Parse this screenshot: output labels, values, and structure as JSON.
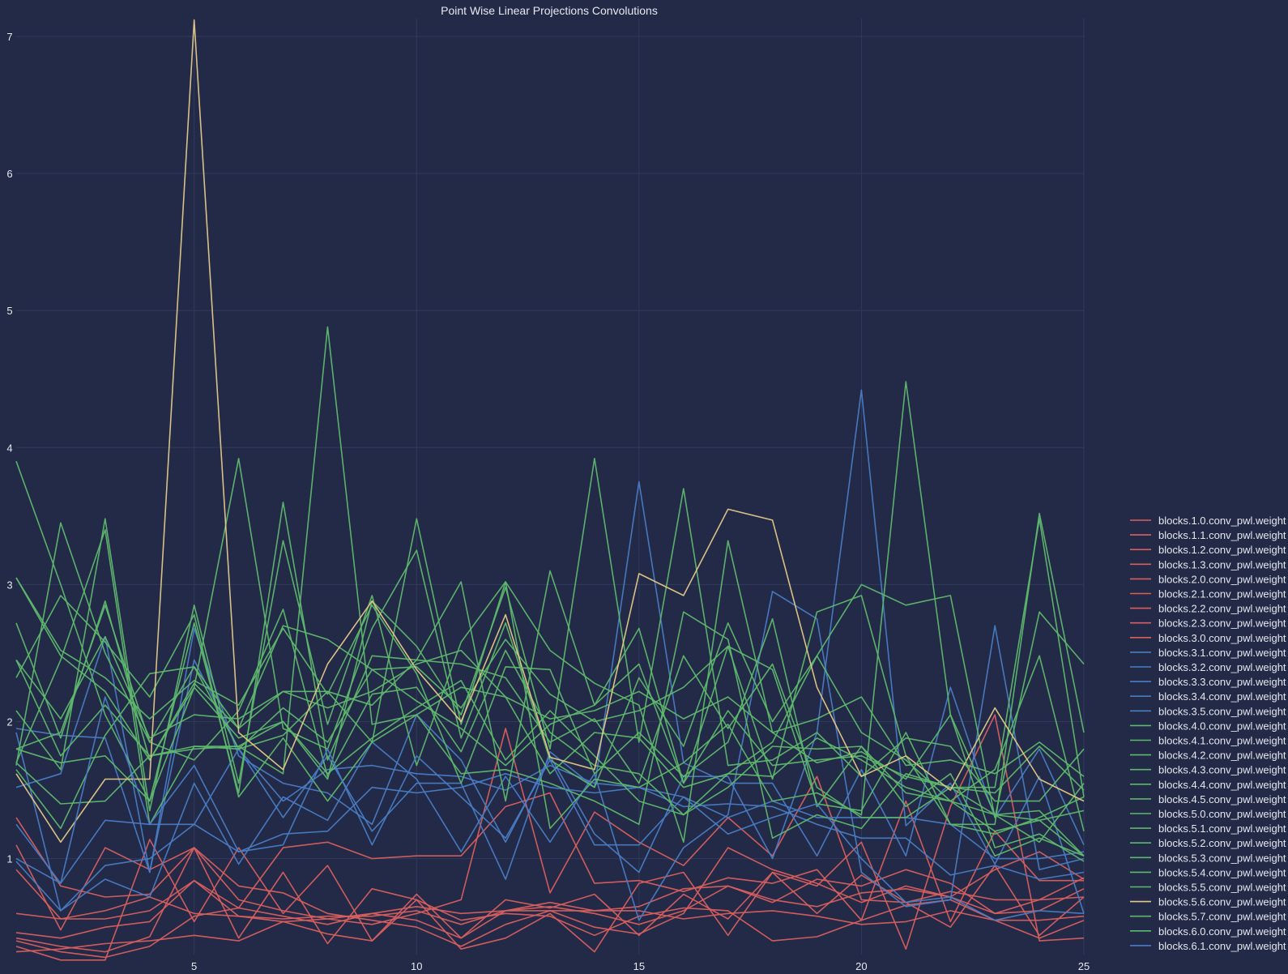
{
  "chart_data": {
    "type": "line",
    "title": "Point Wise Linear Projections Convolutions",
    "xlabel": "",
    "ylabel": "",
    "x": [
      1,
      2,
      3,
      4,
      5,
      6,
      7,
      8,
      9,
      10,
      11,
      12,
      13,
      14,
      15,
      16,
      17,
      18,
      19,
      20,
      21,
      22,
      23,
      24,
      25
    ],
    "xlim": [
      1,
      25
    ],
    "ylim": [
      0.3,
      7.13
    ],
    "x_ticks": [
      5,
      10,
      15,
      20,
      25
    ],
    "y_ticks": [
      1,
      2,
      3,
      4,
      5,
      6,
      7
    ],
    "grid": true,
    "legend_position": "right",
    "colors": {
      "background": "#222a47",
      "grid": "#303a5c",
      "text": "#e6e8ee",
      "red": "#d95f5f",
      "blue": "#4a7cc4",
      "green": "#5fb86e",
      "yellow": "#e4c888"
    },
    "series": [
      {
        "name": "blocks.1.0.conv_pwl.weight",
        "color": "#d95f5f",
        "values": [
          0.42,
          0.36,
          0.32,
          0.43,
          1.08,
          0.8,
          0.75,
          0.6,
          0.55,
          0.5,
          0.36,
          0.52,
          0.62,
          0.5,
          0.45,
          0.6,
          1.08,
          0.92,
          0.82,
          0.68,
          0.8,
          0.72,
          0.92,
          1.05,
          0.85
        ]
      },
      {
        "name": "blocks.1.1.conv_pwl.weight",
        "color": "#d95f5f",
        "values": [
          0.32,
          0.34,
          0.38,
          0.4,
          0.44,
          0.4,
          0.54,
          0.45,
          0.4,
          0.7,
          0.55,
          0.6,
          0.58,
          0.44,
          0.58,
          0.64,
          0.62,
          0.4,
          0.43,
          0.55,
          0.66,
          0.7,
          0.55,
          0.42,
          0.55
        ]
      },
      {
        "name": "blocks.1.2.conv_pwl.weight",
        "color": "#d95f5f",
        "values": [
          0.6,
          0.56,
          0.62,
          0.72,
          0.6,
          0.58,
          0.54,
          0.56,
          0.6,
          0.65,
          0.6,
          0.62,
          0.62,
          0.62,
          0.65,
          0.78,
          0.8,
          0.68,
          0.85,
          0.8,
          0.92,
          0.82,
          0.6,
          0.7,
          0.86
        ]
      },
      {
        "name": "blocks.1.3.conv_pwl.weight",
        "color": "#d95f5f",
        "values": [
          0.46,
          0.42,
          0.5,
          0.54,
          0.84,
          0.64,
          0.58,
          0.52,
          0.6,
          0.55,
          0.42,
          0.62,
          0.65,
          0.6,
          0.52,
          0.62,
          0.8,
          0.7,
          0.65,
          0.75,
          0.78,
          0.72,
          0.6,
          0.62,
          0.78
        ]
      },
      {
        "name": "blocks.2.0.conv_pwl.weight",
        "color": "#d95f5f",
        "values": [
          1.1,
          0.48,
          1.08,
          0.92,
          1.08,
          0.42,
          0.9,
          0.38,
          0.78,
          0.7,
          0.34,
          0.42,
          0.6,
          0.32,
          0.82,
          0.9,
          0.44,
          0.9,
          0.6,
          0.88,
          0.68,
          0.5,
          0.95,
          0.44,
          0.72
        ]
      },
      {
        "name": "blocks.2.1.conv_pwl.weight",
        "color": "#d95f5f",
        "values": [
          0.92,
          0.56,
          0.56,
          0.62,
          0.84,
          0.58,
          0.56,
          0.58,
          0.58,
          0.62,
          0.52,
          0.62,
          0.68,
          0.62,
          0.62,
          0.56,
          0.6,
          0.62,
          0.58,
          0.52,
          0.54,
          0.62,
          0.55,
          0.55,
          0.58
        ]
      },
      {
        "name": "blocks.2.2.conv_pwl.weight",
        "color": "#d95f5f",
        "values": [
          1.3,
          0.8,
          0.72,
          0.74,
          1.08,
          0.7,
          0.62,
          0.56,
          0.52,
          0.6,
          0.7,
          1.95,
          0.75,
          1.34,
          1.12,
          0.95,
          1.3,
          1.02,
          1.6,
          0.7,
          0.68,
          0.76,
          0.7,
          0.7,
          0.72
        ]
      },
      {
        "name": "blocks.2.3.conv_pwl.weight",
        "color": "#d95f5f",
        "values": [
          0.4,
          0.32,
          0.28,
          0.36,
          0.58,
          0.64,
          1.08,
          1.12,
          1.0,
          1.02,
          1.02,
          1.38,
          1.48,
          0.82,
          0.84,
          0.76,
          0.86,
          0.82,
          0.92,
          0.55,
          1.42,
          0.54,
          1.2,
          0.84,
          0.84
        ]
      },
      {
        "name": "blocks.3.0.conv_pwl.weight",
        "color": "#d95f5f",
        "values": [
          0.36,
          0.26,
          0.26,
          1.14,
          0.54,
          1.08,
          0.6,
          0.95,
          0.4,
          0.74,
          0.42,
          0.7,
          0.64,
          0.74,
          0.44,
          0.74,
          0.56,
          0.9,
          0.8,
          1.12,
          0.34,
          1.38,
          2.05,
          0.4,
          0.42
        ]
      },
      {
        "name": "blocks.3.1.conv_pwl.weight",
        "color": "#4a7cc4",
        "values": [
          0.98,
          0.62,
          0.95,
          1.0,
          1.25,
          1.8,
          1.42,
          1.65,
          1.68,
          1.62,
          1.6,
          1.5,
          1.68,
          1.55,
          1.52,
          1.45,
          1.3,
          1.42,
          1.3,
          1.3,
          1.3,
          1.25,
          1.0,
          1.0,
          1.05
        ]
      },
      {
        "name": "blocks.3.2.conv_pwl.weight",
        "color": "#4a7cc4",
        "values": [
          1.0,
          0.82,
          1.28,
          1.25,
          1.25,
          1.05,
          1.18,
          1.2,
          1.52,
          1.48,
          1.52,
          1.62,
          1.52,
          1.48,
          1.52,
          1.38,
          1.4,
          1.38,
          1.25,
          1.15,
          1.15,
          0.88,
          0.95,
          0.85,
          0.9
        ]
      },
      {
        "name": "blocks.3.3.conv_pwl.weight",
        "color": "#4a7cc4",
        "values": [
          1.95,
          1.9,
          1.88,
          0.9,
          2.45,
          1.8,
          1.3,
          1.75,
          1.2,
          1.55,
          1.55,
          0.85,
          1.78,
          1.52,
          3.75,
          1.7,
          1.55,
          1.55,
          1.02,
          1.65,
          1.02,
          2.25,
          1.3,
          1.8,
          1.1
        ]
      },
      {
        "name": "blocks.3.4.conv_pwl.weight",
        "color": "#4a7cc4",
        "values": [
          1.52,
          1.62,
          2.62,
          0.9,
          2.68,
          1.75,
          1.55,
          1.48,
          1.25,
          2.05,
          1.72,
          1.12,
          1.75,
          1.18,
          0.9,
          1.6,
          1.6,
          1.0,
          1.92,
          4.42,
          1.24,
          1.55,
          0.96,
          1.6,
          0.6
        ]
      },
      {
        "name": "blocks.3.5.conv_pwl.weight",
        "color": "#4a7cc4",
        "values": [
          1.92,
          0.62,
          0.85,
          0.72,
          1.55,
          0.96,
          1.45,
          1.28,
          1.85,
          1.58,
          1.05,
          1.6,
          1.12,
          1.62,
          0.55,
          1.08,
          1.32,
          2.95,
          2.75,
          0.9,
          0.65,
          0.7,
          2.7,
          0.92,
          1.0
        ]
      },
      {
        "name": "blocks.4.0.conv_pwl.weight",
        "color": "#5fb86e",
        "values": [
          1.8,
          1.92,
          2.85,
          1.85,
          2.4,
          1.8,
          1.9,
          2.22,
          1.85,
          2.05,
          2.25,
          2.18,
          1.62,
          1.92,
          1.88,
          1.52,
          1.62,
          1.6,
          1.88,
          1.72,
          1.52,
          1.42,
          1.2,
          1.28,
          1.35
        ]
      },
      {
        "name": "blocks.4.1.conv_pwl.weight",
        "color": "#5fb86e",
        "values": [
          2.45,
          1.75,
          2.12,
          1.75,
          1.82,
          1.8,
          2.1,
          1.85,
          2.38,
          2.4,
          2.1,
          2.6,
          2.2,
          2.0,
          2.08,
          2.25,
          2.55,
          2.38,
          1.4,
          1.35,
          1.92,
          1.25,
          1.18,
          1.3,
          1.45
        ]
      },
      {
        "name": "blocks.4.2.conv_pwl.weight",
        "color": "#5fb86e",
        "values": [
          3.05,
          2.48,
          2.22,
          1.72,
          2.28,
          1.95,
          2.7,
          2.6,
          2.38,
          2.15,
          1.95,
          1.68,
          1.98,
          2.12,
          2.42,
          1.55,
          2.08,
          1.68,
          1.72,
          1.75,
          1.6,
          1.52,
          1.32,
          1.35,
          1.02
        ]
      },
      {
        "name": "blocks.4.3.conv_pwl.weight",
        "color": "#5fb86e",
        "values": [
          1.7,
          1.4,
          1.42,
          1.75,
          1.8,
          1.82,
          2.0,
          1.62,
          1.88,
          2.1,
          2.3,
          1.72,
          2.08,
          1.75,
          1.42,
          1.32,
          1.52,
          1.82,
          1.8,
          1.82,
          1.48,
          1.42,
          1.32,
          1.12,
          1.55
        ]
      },
      {
        "name": "blocks.4.4.conv_pwl.weight",
        "color": "#5fb86e",
        "values": [
          3.9,
          3.0,
          2.05,
          1.42,
          2.72,
          1.48,
          3.6,
          1.72,
          2.48,
          2.45,
          3.02,
          1.42,
          3.1,
          2.12,
          2.68,
          1.55,
          2.55,
          1.58,
          2.8,
          2.92,
          1.75,
          1.25,
          1.25,
          3.52,
          1.92
        ]
      },
      {
        "name": "blocks.4.5.conv_pwl.weight",
        "color": "#5fb86e",
        "values": [
          1.68,
          3.45,
          2.5,
          1.85,
          1.72,
          2.08,
          2.82,
          1.6,
          2.2,
          2.25,
          1.78,
          2.52,
          1.92,
          1.68,
          1.62,
          1.32,
          1.62,
          1.85,
          2.48,
          1.92,
          1.72,
          1.42,
          1.65,
          2.48,
          1.2
        ]
      },
      {
        "name": "blocks.5.0.conv_pwl.weight",
        "color": "#5fb86e",
        "values": [
          2.08,
          1.65,
          3.48,
          1.35,
          2.85,
          1.55,
          3.32,
          1.98,
          2.92,
          1.68,
          2.58,
          3.02,
          2.52,
          2.28,
          2.12,
          1.12,
          3.32,
          1.92,
          2.02,
          2.18,
          1.68,
          1.72,
          1.62,
          1.85,
          1.6
        ]
      },
      {
        "name": "blocks.5.1.conv_pwl.weight",
        "color": "#5fb86e",
        "values": [
          1.65,
          1.22,
          1.9,
          2.35,
          2.4,
          1.95,
          2.22,
          2.22,
          2.12,
          2.45,
          2.42,
          2.32,
          1.85,
          2.02,
          1.55,
          2.48,
          1.95,
          2.42,
          1.52,
          1.3,
          1.3,
          1.52,
          1.48,
          1.82,
          1.5
        ]
      },
      {
        "name": "blocks.5.2.conv_pwl.weight",
        "color": "#5fb86e",
        "values": [
          2.72,
          1.88,
          2.88,
          1.72,
          2.25,
          1.88,
          2.0,
          1.58,
          2.88,
          2.55,
          2.05,
          2.98,
          1.8,
          3.92,
          1.85,
          3.7,
          1.68,
          1.72,
          1.92,
          1.6,
          1.88,
          1.82,
          1.42,
          1.42,
          1.8
        ]
      },
      {
        "name": "blocks.5.3.conv_pwl.weight",
        "color": "#5fb86e",
        "values": [
          2.32,
          2.92,
          2.58,
          2.18,
          2.78,
          1.45,
          1.88,
          1.42,
          1.85,
          3.48,
          1.98,
          3.02,
          1.22,
          1.58,
          1.52,
          1.7,
          1.98,
          1.42,
          1.48,
          1.32,
          4.48,
          2.05,
          1.32,
          1.28,
          1.02
        ]
      },
      {
        "name": "blocks.5.4.conv_pwl.weight",
        "color": "#5fb86e",
        "values": [
          1.7,
          2.45,
          3.4,
          1.25,
          1.82,
          1.82,
          1.62,
          4.88,
          1.98,
          2.05,
          1.62,
          1.65,
          1.55,
          1.42,
          1.25,
          2.8,
          2.6,
          1.15,
          1.32,
          1.22,
          1.62,
          1.52,
          1.52,
          3.48,
          1.45
        ]
      },
      {
        "name": "blocks.5.5.conv_pwl.weight",
        "color": "#5fb86e",
        "values": [
          1.8,
          1.7,
          1.75,
          1.42,
          2.25,
          3.92,
          1.95,
          1.8,
          2.68,
          3.25,
          1.88,
          2.72,
          1.72,
          1.52,
          2.32,
          1.82,
          2.72,
          2.0,
          2.48,
          3.0,
          2.85,
          2.92,
          1.3,
          2.8,
          2.42
        ]
      },
      {
        "name": "blocks.5.6.conv_pwl.weight",
        "color": "#e4c888",
        "values": [
          1.62,
          1.12,
          1.58,
          1.58,
          7.12,
          1.92,
          1.65,
          2.42,
          2.88,
          2.38,
          2.0,
          2.78,
          1.74,
          1.65,
          3.08,
          2.92,
          3.55,
          3.47,
          2.25,
          1.6,
          1.75,
          1.5,
          2.1,
          1.58,
          1.42
        ]
      },
      {
        "name": "blocks.5.7.conv_pwl.weight",
        "color": "#5fb86e",
        "values": [
          3.05,
          2.52,
          2.32,
          2.02,
          2.3,
          2.12,
          2.68,
          2.2,
          2.85,
          2.35,
          1.55,
          2.4,
          2.38,
          1.62,
          1.92,
          1.6,
          1.85,
          2.75,
          1.38,
          1.82,
          1.38,
          1.62,
          1.02,
          1.15,
          1.02
        ]
      },
      {
        "name": "blocks.6.0.conv_pwl.weight",
        "color": "#5fb86e",
        "values": [
          2.45,
          2.02,
          2.62,
          1.88,
          2.05,
          2.02,
          2.22,
          2.1,
          2.22,
          2.42,
          2.52,
          2.18,
          2.02,
          2.08,
          2.22,
          2.02,
          2.18,
          1.92,
          1.7,
          1.78,
          1.58,
          2.05,
          1.08,
          1.18,
          0.98
        ]
      },
      {
        "name": "blocks.6.1.conv_pwl.weight",
        "color": "#4a7cc4",
        "values": [
          1.25,
          0.82,
          2.18,
          1.25,
          1.68,
          1.05,
          1.1,
          1.8,
          1.1,
          1.75,
          1.45,
          1.15,
          1.72,
          1.1,
          1.1,
          1.45,
          1.18,
          1.3,
          1.4,
          1.0,
          0.68,
          0.72,
          0.55,
          0.62,
          0.6
        ]
      }
    ]
  }
}
